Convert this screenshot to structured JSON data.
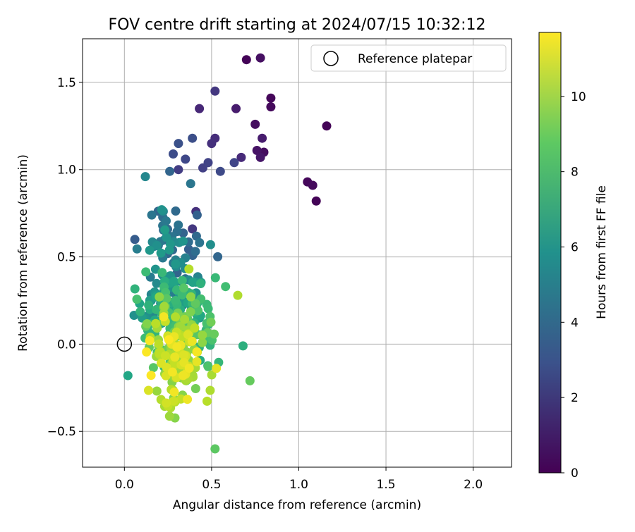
{
  "chart_data": {
    "type": "scatter",
    "title": "FOV centre drift starting at 2024/07/15 10:32:12",
    "xlabel": "Angular distance from reference (arcmin)",
    "ylabel": "Rotation from reference (arcmin)",
    "xlim": [
      -0.24,
      2.22
    ],
    "ylim": [
      -0.705,
      1.75
    ],
    "xticks": [
      "0.0",
      "0.5",
      "1.0",
      "1.5",
      "2.0"
    ],
    "yticks": [
      "−0.5",
      "0.0",
      "0.5",
      "1.0",
      "1.5"
    ],
    "grid": true,
    "legend": {
      "placement": "upper right",
      "label": "Reference platepar"
    },
    "reference_point": {
      "x": 0.0,
      "y": 0.0
    },
    "colorbar": {
      "label": "Hours from first FF file",
      "range": [
        0,
        11.7
      ],
      "ticks": [
        "0",
        "2",
        "4",
        "6",
        "8",
        "10"
      ],
      "colormap": "viridis"
    },
    "point_count": 420
  },
  "colors": {
    "grid": "#b0b0b0",
    "axes": "#000000",
    "viridis_start": "#440154",
    "viridis_end": "#fde725"
  }
}
